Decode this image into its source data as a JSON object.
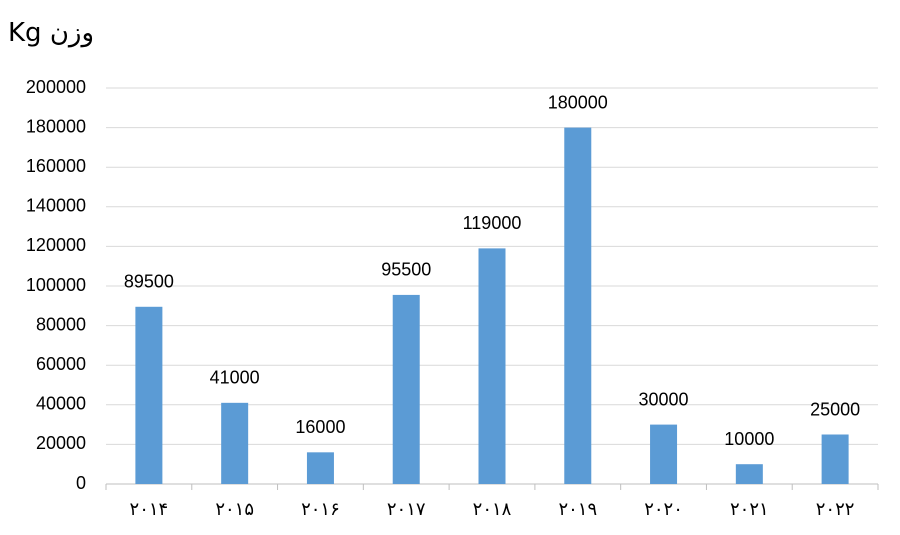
{
  "chart_data": {
    "type": "bar",
    "title": "وزن Kg",
    "categories": [
      "۲۰۱۴",
      "۲۰۱۵",
      "۲۰۱۶",
      "۲۰۱۷",
      "۲۰۱۸",
      "۲۰۱۹",
      "۲۰۲۰",
      "۲۰۲۱",
      "۲۰۲۲"
    ],
    "values": [
      89500,
      41000,
      16000,
      95500,
      119000,
      180000,
      30000,
      10000,
      25000
    ],
    "color": "#5b9bd5",
    "ylim": [
      0,
      200000
    ],
    "yticks": [
      0,
      20000,
      40000,
      60000,
      80000,
      100000,
      120000,
      140000,
      160000,
      180000,
      200000
    ],
    "grid": true
  }
}
